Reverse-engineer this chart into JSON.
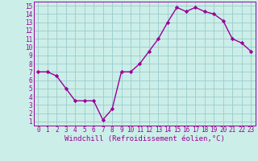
{
  "x": [
    0,
    1,
    2,
    3,
    4,
    5,
    6,
    7,
    8,
    9,
    10,
    11,
    12,
    13,
    14,
    15,
    16,
    17,
    18,
    19,
    20,
    21,
    22,
    23
  ],
  "y": [
    7.0,
    7.0,
    6.5,
    5.0,
    3.5,
    3.5,
    3.5,
    1.2,
    2.5,
    7.0,
    7.0,
    8.0,
    9.5,
    11.0,
    13.0,
    14.8,
    14.3,
    14.8,
    14.3,
    14.0,
    13.2,
    11.0,
    10.5,
    9.5
  ],
  "line_color": "#990099",
  "marker": "D",
  "marker_size": 2.2,
  "bg_color": "#cceee8",
  "grid_color": "#99cccc",
  "xlabel": "Windchill (Refroidissement éolien,°C)",
  "xlabel_color": "#990099",
  "tick_color": "#990099",
  "xlim": [
    -0.5,
    23.5
  ],
  "ylim": [
    0.5,
    15.5
  ],
  "yticks": [
    1,
    2,
    3,
    4,
    5,
    6,
    7,
    8,
    9,
    10,
    11,
    12,
    13,
    14,
    15
  ],
  "xticks": [
    0,
    1,
    2,
    3,
    4,
    5,
    6,
    7,
    8,
    9,
    10,
    11,
    12,
    13,
    14,
    15,
    16,
    17,
    18,
    19,
    20,
    21,
    22,
    23
  ],
  "tick_fontsize": 5.5,
  "xlabel_fontsize": 6.5,
  "linewidth": 1.0
}
